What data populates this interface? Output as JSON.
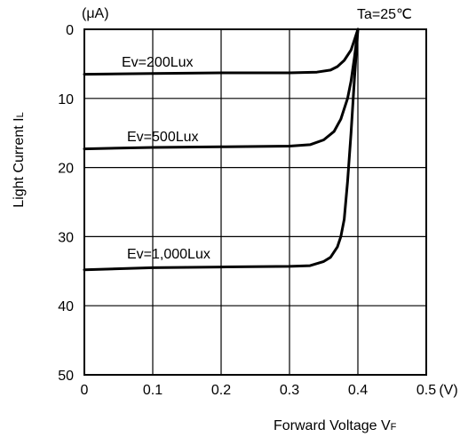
{
  "chart_data": {
    "type": "line",
    "xlabel": "Forward Voltage V",
    "xlabel_sub": "F",
    "ylabel": "Light Current I",
    "ylabel_sub": "L",
    "x_unit": "(V)",
    "y_unit": "(μA)",
    "condition": "Ta=25℃",
    "xlim": [
      0,
      0.5
    ],
    "ylim": [
      0,
      50
    ],
    "y_inverted": true,
    "x_ticks": [
      "0",
      "0.1",
      "0.2",
      "0.3",
      "0.4",
      "0.5"
    ],
    "y_ticks": [
      "0",
      "10",
      "20",
      "30",
      "40",
      "50"
    ],
    "grid": true,
    "series": [
      {
        "name": "Ev=200Lux",
        "points": [
          [
            0,
            6.5
          ],
          [
            0.1,
            6.4
          ],
          [
            0.2,
            6.3
          ],
          [
            0.3,
            6.3
          ],
          [
            0.34,
            6.2
          ],
          [
            0.36,
            5.9
          ],
          [
            0.37,
            5.4
          ],
          [
            0.38,
            4.5
          ],
          [
            0.39,
            3.0
          ],
          [
            0.395,
            1.5
          ],
          [
            0.4,
            0
          ]
        ]
      },
      {
        "name": "Ev=500Lux",
        "points": [
          [
            0,
            17.3
          ],
          [
            0.1,
            17.1
          ],
          [
            0.2,
            17.0
          ],
          [
            0.3,
            16.9
          ],
          [
            0.33,
            16.7
          ],
          [
            0.35,
            16.0
          ],
          [
            0.365,
            14.8
          ],
          [
            0.375,
            13.0
          ],
          [
            0.385,
            10.0
          ],
          [
            0.39,
            7.5
          ],
          [
            0.395,
            4.0
          ],
          [
            0.4,
            0
          ]
        ]
      },
      {
        "name": "Ev=1,000Lux",
        "points": [
          [
            0,
            34.8
          ],
          [
            0.1,
            34.5
          ],
          [
            0.2,
            34.4
          ],
          [
            0.3,
            34.3
          ],
          [
            0.33,
            34.2
          ],
          [
            0.35,
            33.6
          ],
          [
            0.36,
            33.0
          ],
          [
            0.37,
            31.5
          ],
          [
            0.375,
            30.0
          ],
          [
            0.38,
            27.5
          ],
          [
            0.385,
            22.0
          ],
          [
            0.39,
            15.0
          ],
          [
            0.395,
            7.0
          ],
          [
            0.4,
            0
          ]
        ]
      }
    ]
  }
}
